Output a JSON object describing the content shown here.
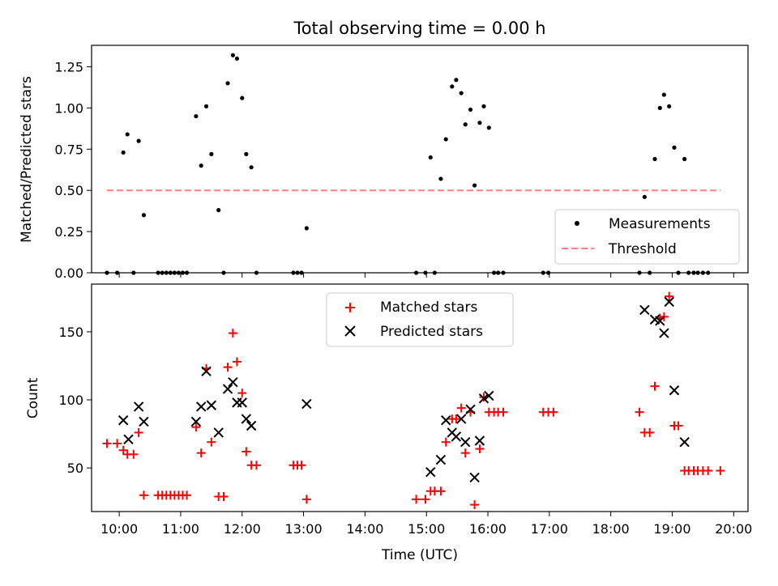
{
  "colors": {
    "measure": "#000000",
    "threshold": "#ff8080",
    "matched": "#ff0000",
    "predicted": "#000000"
  },
  "chart_data": [
    {
      "type": "scatter",
      "title": "Total observing time = 0.00 h",
      "xlabel": "",
      "ylabel": "Matched/Predicted stars",
      "xlim": [
        "09:33",
        "20:14"
      ],
      "ylim": [
        0,
        1.38
      ],
      "yticks": [
        0.0,
        0.25,
        0.5,
        0.75,
        1.0,
        1.25
      ],
      "ytick_labels": [
        "0.00",
        "0.25",
        "0.50",
        "0.75",
        "1.00",
        "1.25"
      ],
      "legend": {
        "placement": "lower-right",
        "entries": [
          "Measurements",
          "Threshold"
        ]
      },
      "series": [
        {
          "name": "Measurements",
          "marker": "dot",
          "points": [
            [
              "09:48",
              0.0
            ],
            [
              "09:58",
              0.0
            ],
            [
              "10:04",
              0.73
            ],
            [
              "10:08",
              0.84
            ],
            [
              "10:14",
              0.0
            ],
            [
              "10:19",
              0.8
            ],
            [
              "10:24",
              0.35
            ],
            [
              "10:38",
              0.0
            ],
            [
              "10:42",
              0.0
            ],
            [
              "10:46",
              0.0
            ],
            [
              "10:50",
              0.0
            ],
            [
              "10:54",
              0.0
            ],
            [
              "10:58",
              0.0
            ],
            [
              "11:02",
              0.0
            ],
            [
              "11:06",
              0.0
            ],
            [
              "11:15",
              0.95
            ],
            [
              "11:20",
              0.65
            ],
            [
              "11:25",
              1.01
            ],
            [
              "11:30",
              0.72
            ],
            [
              "11:37",
              0.38
            ],
            [
              "11:42",
              0.0
            ],
            [
              "11:46",
              1.15
            ],
            [
              "11:51",
              1.32
            ],
            [
              "11:55",
              1.3
            ],
            [
              "12:00",
              1.06
            ],
            [
              "12:04",
              0.72
            ],
            [
              "12:09",
              0.64
            ],
            [
              "12:14",
              0.0
            ],
            [
              "12:50",
              0.0
            ],
            [
              "12:54",
              0.0
            ],
            [
              "12:58",
              0.0
            ],
            [
              "13:03",
              0.27
            ],
            [
              "14:50",
              0.0
            ],
            [
              "14:59",
              0.0
            ],
            [
              "15:04",
              0.7
            ],
            [
              "15:08",
              0.0
            ],
            [
              "15:14",
              0.57
            ],
            [
              "15:19",
              0.81
            ],
            [
              "15:25",
              1.13
            ],
            [
              "15:29",
              1.17
            ],
            [
              "15:34",
              1.09
            ],
            [
              "15:38",
              0.9
            ],
            [
              "15:43",
              0.99
            ],
            [
              "15:47",
              0.53
            ],
            [
              "15:52",
              0.91
            ],
            [
              "15:56",
              1.01
            ],
            [
              "16:01",
              0.88
            ],
            [
              "16:06",
              0.0
            ],
            [
              "16:10",
              0.0
            ],
            [
              "16:15",
              0.0
            ],
            [
              "16:54",
              0.0
            ],
            [
              "16:59",
              0.0
            ],
            [
              "18:28",
              0.0
            ],
            [
              "18:33",
              0.46
            ],
            [
              "18:38",
              0.0
            ],
            [
              "18:43",
              0.69
            ],
            [
              "18:48",
              1.0
            ],
            [
              "18:52",
              1.08
            ],
            [
              "18:57",
              1.01
            ],
            [
              "19:02",
              0.76
            ],
            [
              "19:06",
              0.0
            ],
            [
              "19:12",
              0.69
            ],
            [
              "19:16",
              0.0
            ],
            [
              "19:21",
              0.0
            ],
            [
              "19:25",
              0.0
            ],
            [
              "19:30",
              0.0
            ],
            [
              "19:35",
              0.0
            ]
          ]
        },
        {
          "name": "Threshold",
          "style": "dashed",
          "points": [
            [
              "09:48",
              0.5
            ],
            [
              "19:47",
              0.5
            ]
          ]
        }
      ]
    },
    {
      "type": "scatter",
      "title": "",
      "xlabel": "Time (UTC)",
      "ylabel": "Count",
      "xlim": [
        "09:33",
        "20:14"
      ],
      "ylim": [
        18,
        185
      ],
      "xticks": [
        "10:00",
        "11:00",
        "12:00",
        "13:00",
        "14:00",
        "15:00",
        "16:00",
        "17:00",
        "18:00",
        "19:00",
        "20:00"
      ],
      "yticks": [
        50,
        100,
        150
      ],
      "ytick_labels": [
        "50",
        "100",
        "150"
      ],
      "legend": {
        "placement": "upper-center",
        "entries": [
          "Matched stars",
          "Predicted stars"
        ]
      },
      "series": [
        {
          "name": "Matched stars",
          "marker": "plus",
          "points": [
            [
              "09:48",
              68
            ],
            [
              "09:58",
              68
            ],
            [
              "10:04",
              63
            ],
            [
              "10:08",
              60
            ],
            [
              "10:14",
              60
            ],
            [
              "10:19",
              76
            ],
            [
              "10:24",
              30
            ],
            [
              "10:38",
              30
            ],
            [
              "10:42",
              30
            ],
            [
              "10:46",
              30
            ],
            [
              "10:50",
              30
            ],
            [
              "10:54",
              30
            ],
            [
              "10:58",
              30
            ],
            [
              "11:02",
              30
            ],
            [
              "11:06",
              30
            ],
            [
              "11:15",
              80
            ],
            [
              "11:20",
              61
            ],
            [
              "11:25",
              123
            ],
            [
              "11:30",
              69
            ],
            [
              "11:37",
              29
            ],
            [
              "11:42",
              29
            ],
            [
              "11:46",
              124
            ],
            [
              "11:51",
              149
            ],
            [
              "11:55",
              128
            ],
            [
              "12:00",
              105
            ],
            [
              "12:04",
              62
            ],
            [
              "12:09",
              52
            ],
            [
              "12:14",
              52
            ],
            [
              "12:50",
              52
            ],
            [
              "12:54",
              52
            ],
            [
              "12:58",
              52
            ],
            [
              "13:03",
              27
            ],
            [
              "14:50",
              27
            ],
            [
              "14:59",
              27
            ],
            [
              "15:04",
              33
            ],
            [
              "15:08",
              33
            ],
            [
              "15:14",
              33
            ],
            [
              "15:19",
              69
            ],
            [
              "15:25",
              86
            ],
            [
              "15:29",
              86
            ],
            [
              "15:34",
              94
            ],
            [
              "15:38",
              61
            ],
            [
              "15:43",
              91
            ],
            [
              "15:47",
              23
            ],
            [
              "15:52",
              64
            ],
            [
              "15:56",
              102
            ],
            [
              "16:01",
              91
            ],
            [
              "16:06",
              91
            ],
            [
              "16:10",
              91
            ],
            [
              "16:15",
              91
            ],
            [
              "16:54",
              91
            ],
            [
              "16:59",
              91
            ],
            [
              "17:04",
              91
            ],
            [
              "18:28",
              91
            ],
            [
              "18:33",
              76
            ],
            [
              "18:38",
              76
            ],
            [
              "18:43",
              110
            ],
            [
              "18:48",
              160
            ],
            [
              "18:52",
              161
            ],
            [
              "18:57",
              176
            ],
            [
              "19:02",
              81
            ],
            [
              "19:06",
              81
            ],
            [
              "19:12",
              48
            ],
            [
              "19:16",
              48
            ],
            [
              "19:21",
              48
            ],
            [
              "19:25",
              48
            ],
            [
              "19:30",
              48
            ],
            [
              "19:35",
              48
            ],
            [
              "19:47",
              48
            ]
          ]
        },
        {
          "name": "Predicted stars",
          "marker": "x",
          "points": [
            [
              "10:04",
              85
            ],
            [
              "10:09",
              71
            ],
            [
              "10:19",
              95
            ],
            [
              "10:24",
              84
            ],
            [
              "11:15",
              84
            ],
            [
              "11:20",
              95
            ],
            [
              "11:25",
              121
            ],
            [
              "11:30",
              96
            ],
            [
              "11:37",
              76
            ],
            [
              "11:46",
              108
            ],
            [
              "11:51",
              113
            ],
            [
              "11:55",
              98
            ],
            [
              "12:00",
              98
            ],
            [
              "12:04",
              86
            ],
            [
              "12:09",
              81
            ],
            [
              "13:03",
              97
            ],
            [
              "15:04",
              47
            ],
            [
              "15:14",
              56
            ],
            [
              "15:19",
              85
            ],
            [
              "15:25",
              76
            ],
            [
              "15:29",
              73
            ],
            [
              "15:34",
              86
            ],
            [
              "15:38",
              69
            ],
            [
              "15:43",
              93
            ],
            [
              "15:47",
              43
            ],
            [
              "15:52",
              70
            ],
            [
              "15:56",
              101
            ],
            [
              "16:01",
              103
            ],
            [
              "18:33",
              166
            ],
            [
              "18:43",
              159
            ],
            [
              "18:48",
              158
            ],
            [
              "18:52",
              149
            ],
            [
              "18:57",
              172
            ],
            [
              "19:02",
              107
            ],
            [
              "19:12",
              69
            ]
          ]
        }
      ]
    }
  ]
}
